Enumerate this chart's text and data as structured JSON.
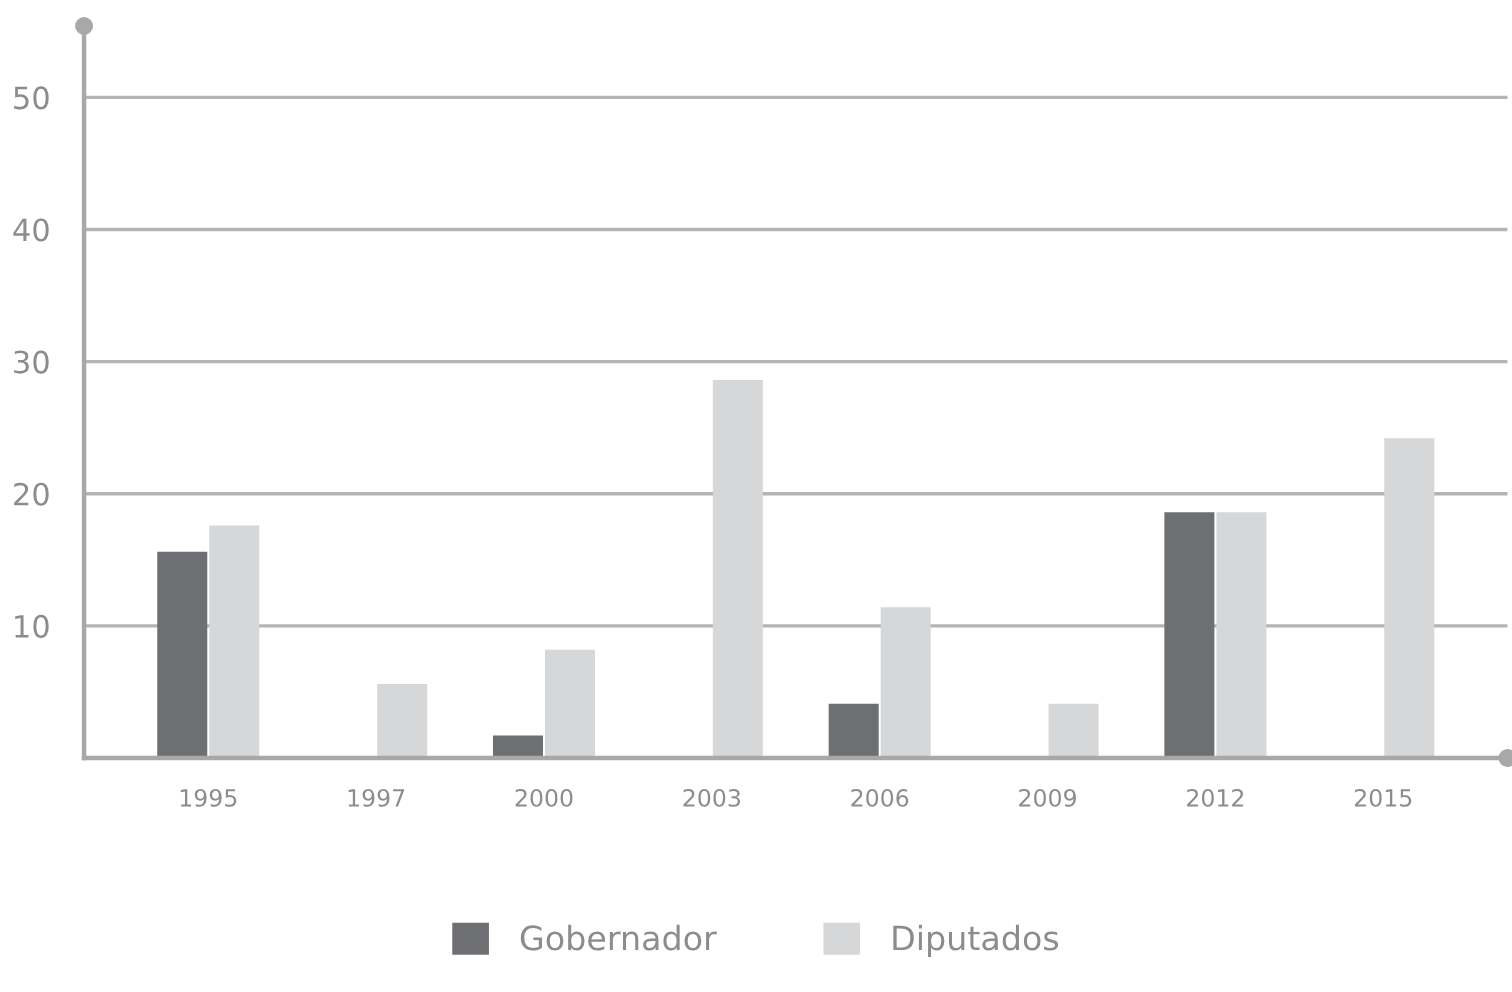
{
  "chart_data": {
    "type": "bar",
    "categories": [
      "1995",
      "1997",
      "2000",
      "2003",
      "2006",
      "2009",
      "2012",
      "2015"
    ],
    "series": [
      {
        "name": "Gobernador",
        "color": "#6e6f72",
        "values": [
          15.6,
          null,
          1.7,
          null,
          4.1,
          null,
          18.6,
          null
        ]
      },
      {
        "name": "Diputados",
        "color": "#d6d7d9",
        "values": [
          17.6,
          5.6,
          8.2,
          28.6,
          11.4,
          4.1,
          18.6,
          24.2
        ]
      }
    ],
    "ylim": [
      0,
      55.4
    ],
    "yticks": [
      10,
      20,
      30,
      40,
      50
    ],
    "grid": "y",
    "legend": "bottom"
  }
}
